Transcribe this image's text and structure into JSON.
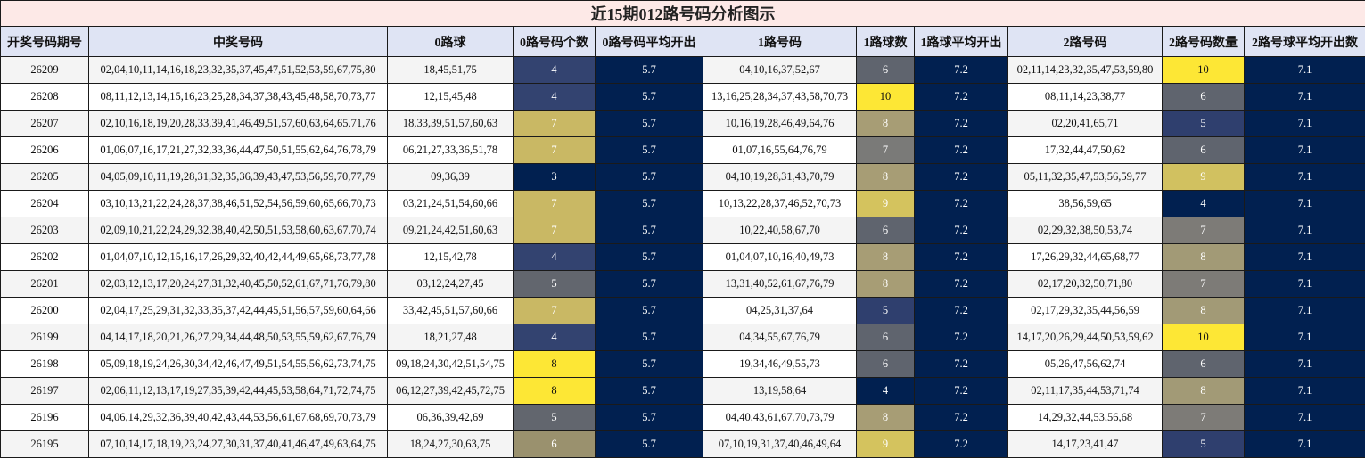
{
  "title": "近15期012路号码分析图示",
  "headers": [
    "开奖号码期号",
    "中奖号码",
    "0路球",
    "0路号码个数",
    "0路号码平均开出",
    "1路号码",
    "1路球数",
    "1路球平均开出",
    "2路号码",
    "2路号码数量",
    "2路号球平均开出数"
  ],
  "colors": {
    "avg_fill": "#012050",
    "heat": {
      "3": "#012050",
      "4": "#334370",
      "5": "#62666e",
      "6": "#9a916e",
      "7": "#c9b864",
      "8": "#fde735"
    },
    "heat_1road": {
      "4": "#012050",
      "5": "#2f3f6e",
      "6": "#5f646e",
      "7": "#7a7a78",
      "8": "#a79d75",
      "9": "#d4c35e",
      "10": "#fde735"
    },
    "heat_2road": {
      "4": "#012050",
      "5": "#2f3f6e",
      "6": "#5f646e",
      "7": "#7d7b77",
      "8": "#a29a76",
      "9": "#d1c160",
      "10": "#fde735"
    }
  },
  "rows": [
    {
      "issue": "26209",
      "numbers": "02,04,10,11,14,16,18,23,32,35,37,45,47,51,52,53,59,67,75,80",
      "r0": "18,45,51,75",
      "c0": "4",
      "a0": "5.7",
      "r1": "04,10,16,37,52,67",
      "c1": "6",
      "a1": "7.2",
      "r2": "02,11,14,23,32,35,47,53,59,80",
      "c2": "10",
      "a2": "7.1"
    },
    {
      "issue": "26208",
      "numbers": "08,11,12,13,14,15,16,23,25,28,34,37,38,43,45,48,58,70,73,77",
      "r0": "12,15,45,48",
      "c0": "4",
      "a0": "5.7",
      "r1": "13,16,25,28,34,37,43,58,70,73",
      "c1": "10",
      "a1": "7.2",
      "r2": "08,11,14,23,38,77",
      "c2": "6",
      "a2": "7.1"
    },
    {
      "issue": "26207",
      "numbers": "02,10,16,18,19,20,28,33,39,41,46,49,51,57,60,63,64,65,71,76",
      "r0": "18,33,39,51,57,60,63",
      "c0": "7",
      "a0": "5.7",
      "r1": "10,16,19,28,46,49,64,76",
      "c1": "8",
      "a1": "7.2",
      "r2": "02,20,41,65,71",
      "c2": "5",
      "a2": "7.1"
    },
    {
      "issue": "26206",
      "numbers": "01,06,07,16,17,21,27,32,33,36,44,47,50,51,55,62,64,76,78,79",
      "r0": "06,21,27,33,36,51,78",
      "c0": "7",
      "a0": "5.7",
      "r1": "01,07,16,55,64,76,79",
      "c1": "7",
      "a1": "7.2",
      "r2": "17,32,44,47,50,62",
      "c2": "6",
      "a2": "7.1"
    },
    {
      "issue": "26205",
      "numbers": "04,05,09,10,11,19,28,31,32,35,36,39,43,47,53,56,59,70,77,79",
      "r0": "09,36,39",
      "c0": "3",
      "a0": "5.7",
      "r1": "04,10,19,28,31,43,70,79",
      "c1": "8",
      "a1": "7.2",
      "r2": "05,11,32,35,47,53,56,59,77",
      "c2": "9",
      "a2": "7.1"
    },
    {
      "issue": "26204",
      "numbers": "03,10,13,21,22,24,28,37,38,46,51,52,54,56,59,60,65,66,70,73",
      "r0": "03,21,24,51,54,60,66",
      "c0": "7",
      "a0": "5.7",
      "r1": "10,13,22,28,37,46,52,70,73",
      "c1": "9",
      "a1": "7.2",
      "r2": "38,56,59,65",
      "c2": "4",
      "a2": "7.1"
    },
    {
      "issue": "26203",
      "numbers": "02,09,10,21,22,24,29,32,38,40,42,50,51,53,58,60,63,67,70,74",
      "r0": "09,21,24,42,51,60,63",
      "c0": "7",
      "a0": "5.7",
      "r1": "10,22,40,58,67,70",
      "c1": "6",
      "a1": "7.2",
      "r2": "02,29,32,38,50,53,74",
      "c2": "7",
      "a2": "7.1"
    },
    {
      "issue": "26202",
      "numbers": "01,04,07,10,12,15,16,17,26,29,32,40,42,44,49,65,68,73,77,78",
      "r0": "12,15,42,78",
      "c0": "4",
      "a0": "5.7",
      "r1": "01,04,07,10,16,40,49,73",
      "c1": "8",
      "a1": "7.2",
      "r2": "17,26,29,32,44,65,68,77",
      "c2": "8",
      "a2": "7.1"
    },
    {
      "issue": "26201",
      "numbers": "02,03,12,13,17,20,24,27,31,32,40,45,50,52,61,67,71,76,79,80",
      "r0": "03,12,24,27,45",
      "c0": "5",
      "a0": "5.7",
      "r1": "13,31,40,52,61,67,76,79",
      "c1": "8",
      "a1": "7.2",
      "r2": "02,17,20,32,50,71,80",
      "c2": "7",
      "a2": "7.1"
    },
    {
      "issue": "26200",
      "numbers": "02,04,17,25,29,31,32,33,35,37,42,44,45,51,56,57,59,60,64,66",
      "r0": "33,42,45,51,57,60,66",
      "c0": "7",
      "a0": "5.7",
      "r1": "04,25,31,37,64",
      "c1": "5",
      "a1": "7.2",
      "r2": "02,17,29,32,35,44,56,59",
      "c2": "8",
      "a2": "7.1"
    },
    {
      "issue": "26199",
      "numbers": "04,14,17,18,20,21,26,27,29,34,44,48,50,53,55,59,62,67,76,79",
      "r0": "18,21,27,48",
      "c0": "4",
      "a0": "5.7",
      "r1": "04,34,55,67,76,79",
      "c1": "6",
      "a1": "7.2",
      "r2": "14,17,20,26,29,44,50,53,59,62",
      "c2": "10",
      "a2": "7.1"
    },
    {
      "issue": "26198",
      "numbers": "05,09,18,19,24,26,30,34,42,46,47,49,51,54,55,56,62,73,74,75",
      "r0": "09,18,24,30,42,51,54,75",
      "c0": "8",
      "a0": "5.7",
      "r1": "19,34,46,49,55,73",
      "c1": "6",
      "a1": "7.2",
      "r2": "05,26,47,56,62,74",
      "c2": "6",
      "a2": "7.1"
    },
    {
      "issue": "26197",
      "numbers": "02,06,11,12,13,17,19,27,35,39,42,44,45,53,58,64,71,72,74,75",
      "r0": "06,12,27,39,42,45,72,75",
      "c0": "8",
      "a0": "5.7",
      "r1": "13,19,58,64",
      "c1": "4",
      "a1": "7.2",
      "r2": "02,11,17,35,44,53,71,74",
      "c2": "8",
      "a2": "7.1"
    },
    {
      "issue": "26196",
      "numbers": "04,06,14,29,32,36,39,40,42,43,44,53,56,61,67,68,69,70,73,79",
      "r0": "06,36,39,42,69",
      "c0": "5",
      "a0": "5.7",
      "r1": "04,40,43,61,67,70,73,79",
      "c1": "8",
      "a1": "7.2",
      "r2": "14,29,32,44,53,56,68",
      "c2": "7",
      "a2": "7.1"
    },
    {
      "issue": "26195",
      "numbers": "07,10,14,17,18,19,23,24,27,30,31,37,40,41,46,47,49,63,64,75",
      "r0": "18,24,27,30,63,75",
      "c0": "6",
      "a0": "5.7",
      "r1": "07,10,19,31,37,40,46,49,64",
      "c1": "9",
      "a1": "7.2",
      "r2": "14,17,23,41,47",
      "c2": "5",
      "a2": "7.1"
    }
  ]
}
